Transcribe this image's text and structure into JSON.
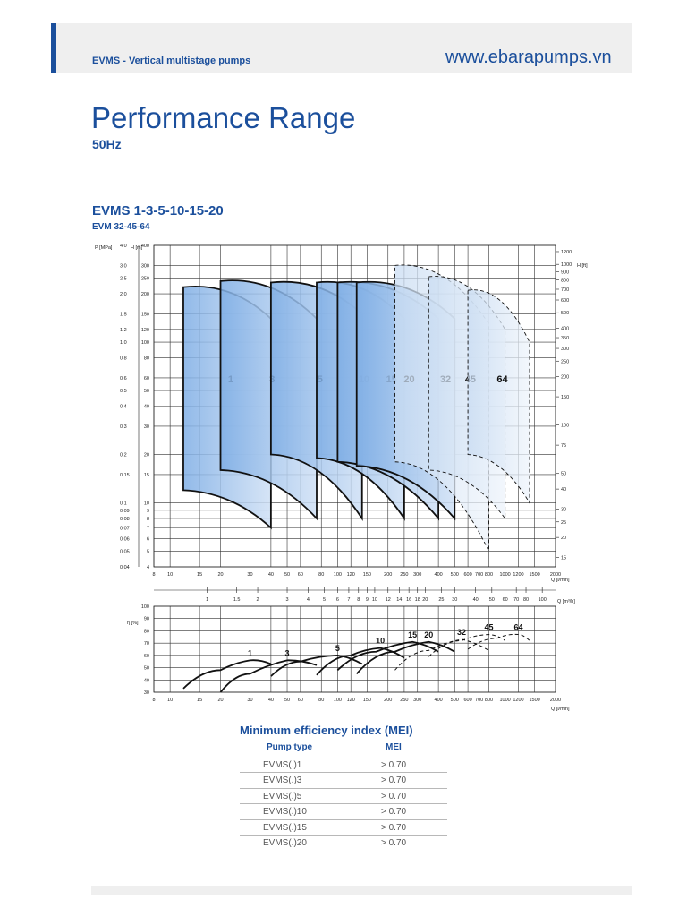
{
  "header": {
    "subtitle": "EVMS - Vertical multistage pumps",
    "url": "www.ebarapumps.vn"
  },
  "page": {
    "title": "Performance Range",
    "frequency": "50Hz"
  },
  "section": {
    "title": "EVMS 1-3-5-10-15-20",
    "subtitle": "EVM 32-45-64"
  },
  "colors": {
    "brand": "#1b4f9c",
    "envelope_fill": "#8fb8e8",
    "envelope_fill_light": "#d8e6f6"
  },
  "chart_data": [
    {
      "type": "area",
      "scale": "log-log",
      "x_unit_main": "Q [l/min]",
      "x_unit_secondary": "Q [m³/h]",
      "y_left_outer": "P [MPa]",
      "y_left_inner": "H [m]",
      "y_right": "H [ft]",
      "x_ticks": [
        "8",
        "10",
        "15",
        "20",
        "30",
        "40",
        "50",
        "60",
        "80",
        "100",
        "120",
        "150",
        "200",
        "250",
        "300",
        "400",
        "500",
        "600",
        "700",
        "800",
        "1000",
        "1200",
        "1500",
        "2000"
      ],
      "x2_ticks": [
        "1",
        "1.5",
        "2",
        "3",
        "4",
        "5",
        "6",
        "7",
        "8",
        "9",
        "10",
        "12",
        "14",
        "16",
        "18",
        "20",
        "25",
        "30",
        "40",
        "50",
        "60",
        "70",
        "80",
        "100"
      ],
      "y_ticks_m": [
        "4",
        "5",
        "6",
        "7",
        "8",
        "9",
        "10",
        "15",
        "20",
        "30",
        "40",
        "50",
        "60",
        "80",
        "100",
        "120",
        "150",
        "200",
        "250",
        "300",
        "400"
      ],
      "y_ticks_mpa": [
        "0.04",
        "0.05",
        "0.06",
        "0.07",
        "0.08",
        "0.09",
        "0.1",
        "0.15",
        "0.2",
        "0.3",
        "0.4",
        "0.5",
        "0.6",
        "0.8",
        "1.0",
        "1.2",
        "1.5",
        "2.0",
        "2.5",
        "3.0",
        "4.0"
      ],
      "y_ticks_ft": [
        "15",
        "20",
        "25",
        "30",
        "40",
        "50",
        "75",
        "100",
        "150",
        "200",
        "250",
        "300",
        "350",
        "400",
        "500",
        "600",
        "700",
        "800",
        "900",
        "1000",
        "1200"
      ],
      "series": [
        {
          "name": "1",
          "q_range": [
            12,
            40
          ],
          "h_top": [
            220,
            140
          ],
          "h_bottom": [
            12,
            7
          ]
        },
        {
          "name": "3",
          "q_range": [
            20,
            75
          ],
          "h_top": [
            240,
            140
          ],
          "h_bottom": [
            16,
            8
          ]
        },
        {
          "name": "5",
          "q_range": [
            40,
            140
          ],
          "h_top": [
            235,
            150
          ],
          "h_bottom": [
            20,
            8
          ]
        },
        {
          "name": "10",
          "q_range": [
            75,
            250
          ],
          "h_top": [
            235,
            140
          ],
          "h_bottom": [
            19,
            8
          ]
        },
        {
          "name": "15",
          "q_range": [
            100,
            400
          ],
          "h_top": [
            235,
            140
          ],
          "h_bottom": [
            18,
            8
          ]
        },
        {
          "name": "20",
          "q_range": [
            130,
            500
          ],
          "h_top": [
            235,
            140
          ],
          "h_bottom": [
            17,
            8
          ]
        },
        {
          "name": "32",
          "q_range": [
            220,
            800
          ],
          "h_top": [
            300,
            130
          ],
          "h_bottom": [
            18,
            5
          ]
        },
        {
          "name": "45",
          "q_range": [
            350,
            1000
          ],
          "h_top": [
            255,
            120
          ],
          "h_bottom": [
            16,
            8
          ]
        },
        {
          "name": "64",
          "q_range": [
            600,
            1400
          ],
          "h_top": [
            210,
            100
          ],
          "h_bottom": [
            20,
            10
          ]
        }
      ]
    },
    {
      "type": "line",
      "ylabel": "η [%]",
      "xlabel": "Q [l/min]",
      "ylim": [
        30,
        100
      ],
      "y_ticks": [
        "30",
        "40",
        "50",
        "60",
        "70",
        "80",
        "90",
        "100"
      ],
      "series": [
        {
          "name": "1",
          "x": [
            12,
            20,
            30,
            40
          ],
          "y": [
            33,
            48,
            56,
            53
          ]
        },
        {
          "name": "3",
          "x": [
            20,
            30,
            50,
            75
          ],
          "y": [
            30,
            45,
            56,
            52
          ]
        },
        {
          "name": "5",
          "x": [
            40,
            60,
            100,
            140
          ],
          "y": [
            43,
            55,
            60,
            53
          ]
        },
        {
          "name": "10",
          "x": [
            75,
            120,
            180,
            250
          ],
          "y": [
            44,
            60,
            66,
            58
          ]
        },
        {
          "name": "15",
          "x": [
            100,
            170,
            280,
            400
          ],
          "y": [
            48,
            63,
            71,
            63
          ]
        },
        {
          "name": "20",
          "x": [
            130,
            220,
            350,
            500
          ],
          "y": [
            45,
            63,
            71,
            63
          ]
        },
        {
          "name": "32",
          "x": [
            220,
            350,
            550,
            800
          ],
          "y": [
            48,
            64,
            73,
            64
          ]
        },
        {
          "name": "45",
          "x": [
            350,
            550,
            800,
            1000
          ],
          "y": [
            59,
            72,
            77,
            72
          ]
        },
        {
          "name": "64",
          "x": [
            600,
            900,
            1200,
            1400
          ],
          "y": [
            65,
            74,
            77,
            72
          ]
        }
      ]
    }
  ],
  "mei": {
    "title": "Minimum efficiency index (MEI)",
    "col_type": "Pump type",
    "col_mei": "MEI",
    "rows": [
      {
        "type": "EVMS(.)1",
        "mei": "> 0.70"
      },
      {
        "type": "EVMS(.)3",
        "mei": "> 0.70"
      },
      {
        "type": "EVMS(.)5",
        "mei": "> 0.70"
      },
      {
        "type": "EVMS(.)10",
        "mei": "> 0.70"
      },
      {
        "type": "EVMS(.)15",
        "mei": "> 0.70"
      },
      {
        "type": "EVMS(.)20",
        "mei": "> 0.70"
      }
    ]
  }
}
